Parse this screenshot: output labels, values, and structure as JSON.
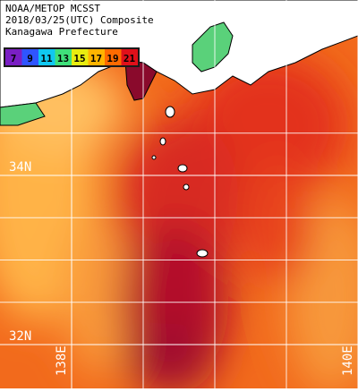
{
  "title_lines": [
    "NOAA/METOP MCSST",
    "2018/03/25(UTC) Composite",
    "Kanagawa Prefecture"
  ],
  "colorbar": {
    "ticks": [
      7,
      9,
      11,
      13,
      15,
      17,
      19,
      21
    ],
    "colors": [
      "#7a1fc4",
      "#2f55ff",
      "#10c8f0",
      "#3fe07a",
      "#e8ec10",
      "#ffb400",
      "#ff6a00",
      "#e0101a"
    ]
  },
  "grid": {
    "lat": [
      {
        "value": 34,
        "label": "34N"
      },
      {
        "value": 32,
        "label": "32N"
      }
    ],
    "lon": [
      {
        "value": 138,
        "label": "138E"
      },
      {
        "value": 140,
        "label": "140E"
      }
    ]
  }
}
